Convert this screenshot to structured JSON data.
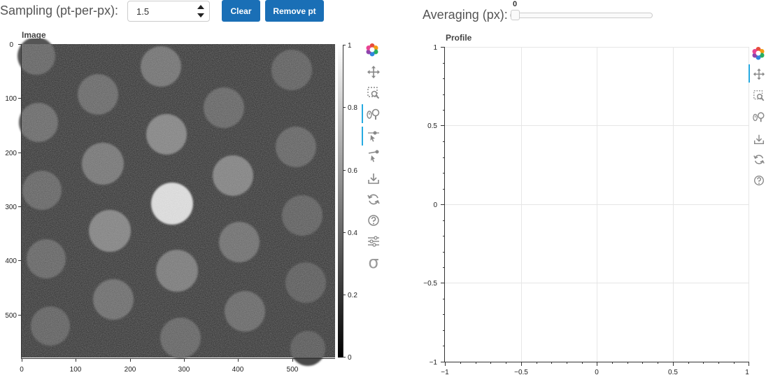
{
  "controls": {
    "sampling_label": "Sampling (pt-per-px):",
    "sampling_value": "1.5",
    "clear_label": "Clear",
    "remove_label": "Remove pt",
    "averaging_label": "Averaging (px):",
    "averaging_value": "0"
  },
  "image_plot": {
    "title": "Image",
    "x_ticks": [
      "0",
      "100",
      "200",
      "300",
      "400",
      "500"
    ],
    "y_ticks": [
      "0",
      "100",
      "200",
      "300",
      "400",
      "500"
    ],
    "colorbar_ticks": [
      "1",
      "0.8",
      "0.6",
      "0.4",
      "0.2",
      "0"
    ],
    "tools": [
      "bokeh-logo-icon",
      "pan-icon",
      "box-zoom-icon",
      "wheel-zoom-icon",
      "point-draw-icon",
      "poly-draw-icon",
      "save-icon",
      "reset-icon",
      "help-icon",
      "settings-icon",
      "sigma-icon"
    ]
  },
  "profile_plot": {
    "title": "Profile",
    "tools": [
      "bokeh-logo-icon",
      "pan-icon",
      "box-zoom-icon",
      "wheel-zoom-icon",
      "save-icon",
      "reset-icon",
      "help-icon"
    ]
  },
  "chart_data": [
    {
      "type": "heatmap",
      "title": "Image",
      "xlim": [
        0,
        580
      ],
      "ylim": [
        580,
        0
      ],
      "colormap": "gray",
      "colorbar_range": [
        0,
        1
      ],
      "x_ticks": [
        "0",
        "100",
        "200",
        "300",
        "400",
        "500"
      ],
      "y_ticks": [
        "0",
        "100",
        "200",
        "300",
        "400",
        "500"
      ],
      "colorbar_ticks": [
        "1",
        "0.8",
        "0.6",
        "0.4",
        "0.2",
        "0"
      ]
    },
    {
      "type": "line",
      "title": "Profile",
      "xlim": [
        -1,
        1
      ],
      "ylim": [
        -1,
        1
      ],
      "x_ticks": [
        "−1",
        "−0.5",
        "0",
        "0.5",
        "1"
      ],
      "y_ticks": [
        "1",
        "0.5",
        "0",
        "−0.5",
        "−1"
      ],
      "grid": true,
      "series": []
    }
  ]
}
